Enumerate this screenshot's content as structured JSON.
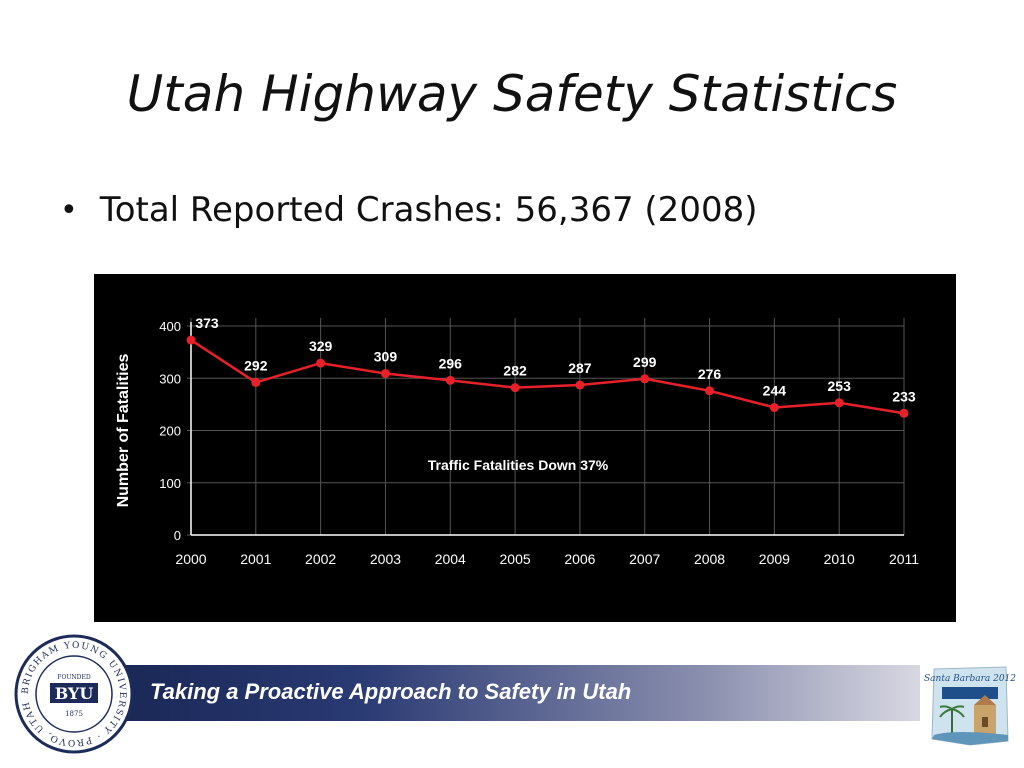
{
  "slide": {
    "title": "Utah Highway Safety Statistics",
    "bullet": "Total Reported Crashes: 56,367 (2008)"
  },
  "footer": {
    "tagline": "Taking a Proactive Approach to Safety in Utah",
    "seal_text": "BRIGHAM YOUNG UNIVERSITY · PROVO, UTAH",
    "seal_founded": "FOUNDED",
    "seal_abbr": "BYU",
    "seal_year": "1875",
    "conference_text": "Santa Barbara 2012"
  },
  "colors": {
    "line": "#e8202a",
    "chart_bg": "#000000",
    "grid": "#555555",
    "axis_text": "#ffffff"
  },
  "chart_data": {
    "type": "line",
    "x": [
      "2000",
      "2001",
      "2002",
      "2003",
      "2004",
      "2005",
      "2006",
      "2007",
      "2008",
      "2009",
      "2010",
      "2011"
    ],
    "series": [
      {
        "values": [
          373,
          292,
          329,
          309,
          296,
          282,
          287,
          299,
          276,
          244,
          253,
          233
        ]
      }
    ],
    "ylabel": "Number of Fatalities",
    "xlabel": "",
    "ylim": [
      0,
      400
    ],
    "yticks": [
      0,
      100,
      200,
      300,
      400
    ],
    "annotation": "Traffic Fatalities Down 37%",
    "grid": true
  }
}
